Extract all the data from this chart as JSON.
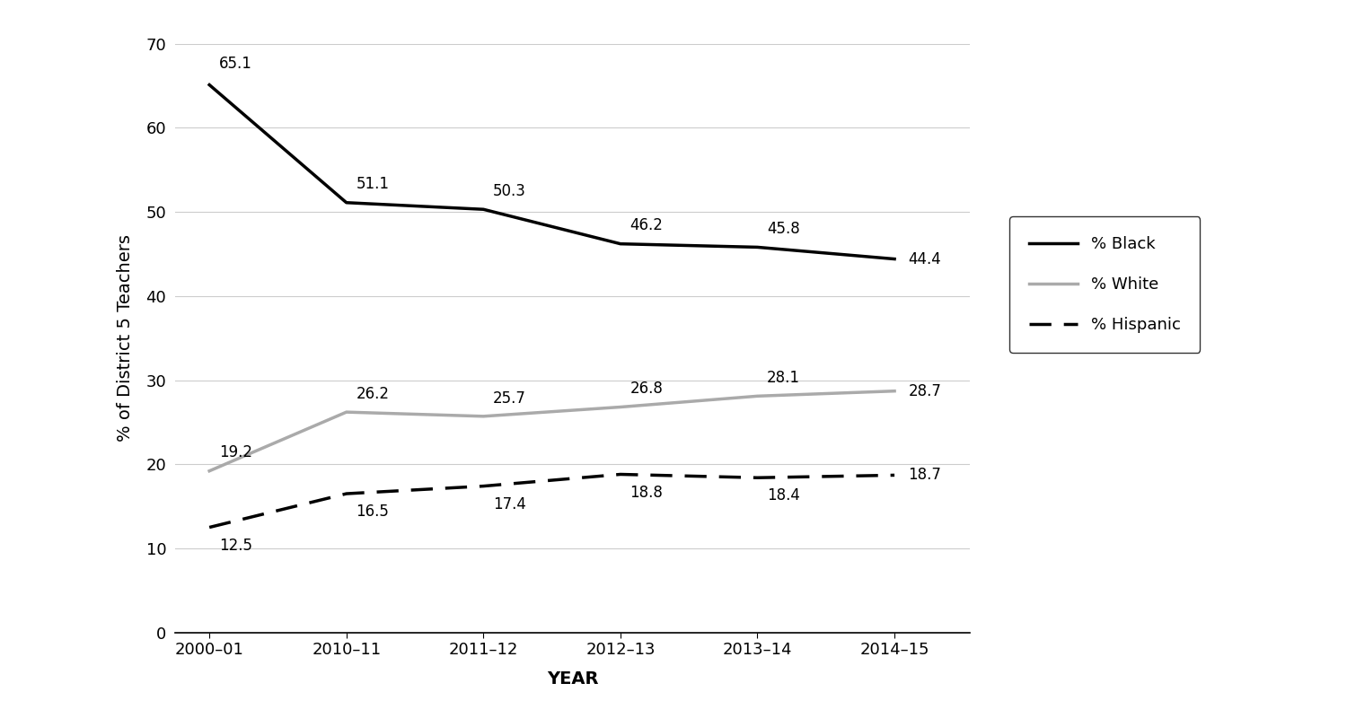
{
  "x_labels": [
    "2000–01",
    "2010–11",
    "2011–12",
    "2012–13",
    "2013–14",
    "2014–15"
  ],
  "x_positions": [
    0,
    1,
    2,
    3,
    4,
    5
  ],
  "black_values": [
    65.1,
    51.1,
    50.3,
    46.2,
    45.8,
    44.4
  ],
  "white_values": [
    19.2,
    26.2,
    25.7,
    26.8,
    28.1,
    28.7
  ],
  "hispanic_values": [
    12.5,
    16.5,
    17.4,
    18.8,
    18.4,
    18.7
  ],
  "black_color": "#000000",
  "white_color": "#aaaaaa",
  "hispanic_color": "#000000",
  "ylim": [
    0,
    70
  ],
  "yticks": [
    0,
    10,
    20,
    30,
    40,
    50,
    60,
    70
  ],
  "ylabel": "% of District 5 Teachers",
  "xlabel": "YEAR",
  "legend_labels": [
    "% Black",
    "% White",
    "% Hispanic"
  ],
  "background_color": "#ffffff",
  "label_fontsize": 14,
  "tick_fontsize": 13,
  "annotation_fontsize": 12,
  "legend_fontsize": 13,
  "line_width": 2.5
}
